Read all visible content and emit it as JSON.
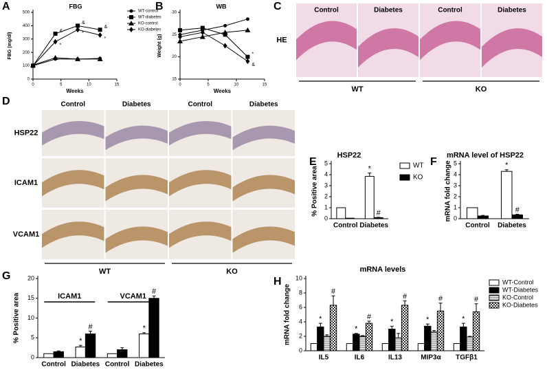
{
  "chart_data": [
    {
      "type": "line",
      "panel": "A",
      "title": "FBG",
      "xlabel": "Weeks",
      "ylabel": "FBG (mg/dl)",
      "x": [
        0,
        4,
        8,
        12
      ],
      "xlim": [
        0,
        15
      ],
      "xticks": [
        0,
        5,
        10,
        15
      ],
      "ylim": [
        0,
        500
      ],
      "yticks": [
        0,
        100,
        200,
        300,
        400,
        500
      ],
      "series": [
        {
          "name": "WT-control",
          "color": "#000000",
          "marker": "circle",
          "values": [
            100,
            150,
            150,
            155
          ],
          "annotations": [
            null,
            null,
            null,
            null
          ]
        },
        {
          "name": "WT-diabetes",
          "color": "#000000",
          "marker": "square",
          "values": [
            100,
            340,
            400,
            370
          ],
          "annotations": [
            null,
            "&",
            "&",
            "&"
          ]
        },
        {
          "name": "KO-control",
          "color": "#000000",
          "marker": "triangle",
          "values": [
            105,
            160,
            150,
            150
          ],
          "annotations": [
            null,
            null,
            null,
            null
          ]
        },
        {
          "name": "KO-diabetes",
          "color": "#000000",
          "marker": "diamond",
          "values": [
            100,
            280,
            370,
            330
          ],
          "annotations": [
            null,
            "*",
            "*",
            "*"
          ]
        }
      ]
    },
    {
      "type": "line",
      "panel": "B",
      "title": "WB",
      "xlabel": "Weeks",
      "ylabel": "Weight (g)",
      "x": [
        0,
        4,
        8,
        12
      ],
      "xlim": [
        0,
        15
      ],
      "xticks": [
        0,
        5,
        10,
        15
      ],
      "ylim": [
        15,
        30
      ],
      "yticks": [
        15,
        20,
        25,
        30
      ],
      "series": [
        {
          "color": "#000000",
          "marker": "circle",
          "values": [
            25,
            26,
            27,
            28.5
          ],
          "annotations": [
            null,
            null,
            null,
            null
          ]
        },
        {
          "color": "#000000",
          "marker": "square",
          "values": [
            26,
            26.5,
            25,
            20
          ],
          "annotations": [
            null,
            null,
            null,
            "*"
          ]
        },
        {
          "color": "#000000",
          "marker": "triangle",
          "values": [
            23.5,
            24.5,
            25.5,
            26
          ],
          "annotations": [
            null,
            null,
            null,
            null
          ]
        },
        {
          "color": "#000000",
          "marker": "diamond",
          "values": [
            24.5,
            25.5,
            22.5,
            19
          ],
          "annotations": [
            null,
            null,
            null,
            "&"
          ]
        }
      ]
    },
    {
      "type": "bar",
      "panel": "E",
      "title": "HSP22",
      "ylabel": "% Positive area",
      "categories": [
        "Control",
        "Diabetes"
      ],
      "ylim": [
        0,
        5
      ],
      "yticks": [
        0,
        1,
        2,
        3,
        4,
        5
      ],
      "series": [
        {
          "name": "WT",
          "color": "#ffffff",
          "values": [
            1,
            3.85
          ],
          "errors": [
            0,
            0.3
          ],
          "annotations": [
            null,
            "*"
          ]
        },
        {
          "name": "KO",
          "color": "#000000",
          "values": [
            0.05,
            0.1
          ],
          "errors": [
            0,
            0.03
          ],
          "annotations": [
            null,
            "#"
          ]
        }
      ]
    },
    {
      "type": "bar",
      "panel": "F",
      "title": "mRNA level of HSP22",
      "ylabel": "mRNA fold change",
      "categories": [
        "Control",
        "Diabetes"
      ],
      "ylim": [
        0,
        5
      ],
      "yticks": [
        0,
        1,
        2,
        3,
        4,
        5
      ],
      "series": [
        {
          "color": "#ffffff",
          "values": [
            1,
            4.3
          ],
          "errors": [
            0,
            0.15
          ],
          "annotations": [
            null,
            "*"
          ]
        },
        {
          "color": "#000000",
          "values": [
            0.25,
            0.35
          ],
          "errors": [
            0.05,
            0.05
          ],
          "annotations": [
            null,
            "#"
          ]
        }
      ]
    },
    {
      "type": "bar",
      "panel": "G",
      "ylabel": "% Positive area",
      "groups": [
        "ICAM1",
        "VCAM1"
      ],
      "categories": [
        "Control",
        "Diabetes",
        "Control",
        "Diabetes"
      ],
      "ylim": [
        0,
        20
      ],
      "yticks": [
        0,
        5,
        10,
        15,
        20
      ],
      "series": [
        {
          "color": "#ffffff",
          "values": [
            1,
            2.7,
            1,
            6
          ],
          "errors": [
            0,
            0.4,
            0,
            0.3
          ],
          "annotations": [
            null,
            "*",
            null,
            "*"
          ]
        },
        {
          "color": "#000000",
          "values": [
            1.5,
            6,
            2,
            15
          ],
          "errors": [
            0.2,
            0.7,
            0.5,
            0.6
          ],
          "annotations": [
            null,
            "#",
            null,
            "#"
          ]
        }
      ]
    },
    {
      "type": "bar",
      "panel": "H",
      "title": "mRNA levels",
      "ylabel": "mRNA fold change",
      "categories": [
        "IL5",
        "IL6",
        "IL13",
        "MIP3α",
        "TGFβ1"
      ],
      "ylim": [
        0,
        10
      ],
      "yticks": [
        0,
        2,
        4,
        6,
        8,
        10
      ],
      "series": [
        {
          "name": "WT-Control",
          "color": "#ffffff",
          "values": [
            1,
            1,
            1,
            1,
            1
          ],
          "errors": [
            0,
            0,
            0,
            0,
            0
          ],
          "annotations": [
            null,
            null,
            null,
            null,
            null
          ]
        },
        {
          "name": "WT-Diabetes",
          "color": "#000000",
          "values": [
            3.3,
            2.3,
            3,
            3.4,
            3.3
          ],
          "errors": [
            0.5,
            0.1,
            0.4,
            0.3,
            0.5
          ],
          "annotations": [
            "*",
            "*",
            "*",
            "*",
            "*"
          ]
        },
        {
          "name": "KO-Control",
          "color": "#bbbbbb",
          "pattern": "hlines",
          "values": [
            2,
            2,
            1.8,
            2.6,
            1.9
          ],
          "errors": [
            0.2,
            0.1,
            0.6,
            0.2,
            0.1
          ],
          "annotations": [
            null,
            null,
            null,
            null,
            null
          ]
        },
        {
          "name": "KO-Diabetes",
          "color": "#555555",
          "pattern": "checker",
          "values": [
            6.3,
            3.8,
            6.3,
            5.5,
            5.4
          ],
          "errors": [
            1.3,
            0.3,
            0.6,
            1.1,
            1.1
          ],
          "annotations": [
            "#",
            "#",
            "#",
            "#",
            "#"
          ]
        }
      ]
    }
  ],
  "images": [
    {
      "panel": "C",
      "columns": [
        "Control",
        "Diabetes",
        "Control",
        "Diabetes"
      ],
      "rows": [
        "HE"
      ],
      "groups": [
        "WT",
        "KO"
      ]
    },
    {
      "panel": "D",
      "columns": [
        "Control",
        "Diabetes",
        "Control",
        "Diabetes"
      ],
      "rows": [
        "HSP22",
        "ICAM1",
        "VCAM1"
      ],
      "groups": [
        "WT",
        "KO"
      ]
    }
  ]
}
